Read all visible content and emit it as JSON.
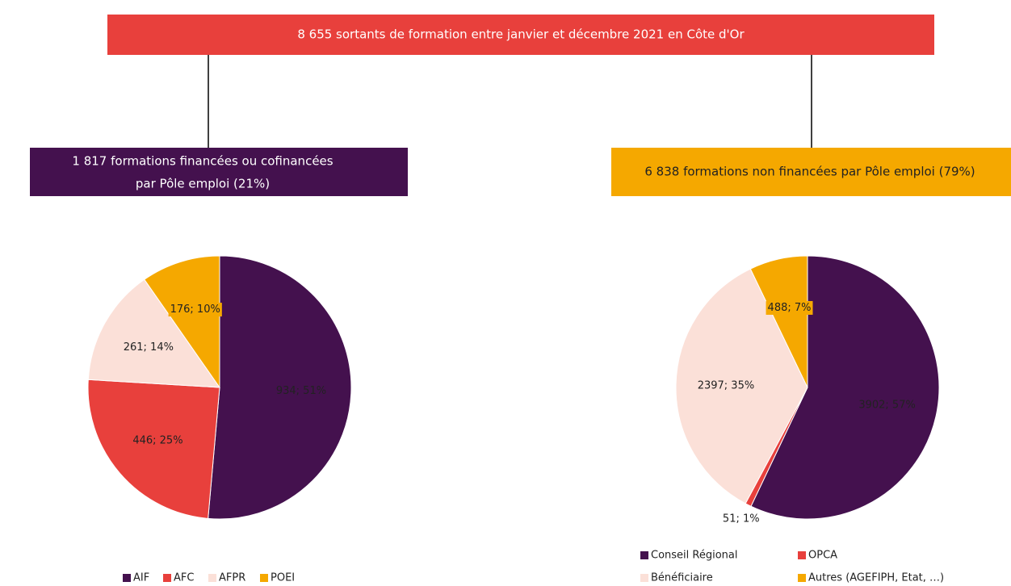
{
  "header": {
    "title": "8 655 sortants de formation entre janvier et décembre 2021 en Côte d'Or"
  },
  "left_box": {
    "lines": [
      "1 817 formations financées ou cofinancées",
      "par Pôle emploi (21%)"
    ]
  },
  "right_box": {
    "lines": [
      "6 838 formations non financées par Pôle emploi (79%)"
    ]
  },
  "chart_data": [
    {
      "type": "pie",
      "categories": [
        "AIF",
        "AFC",
        "AFPR",
        "POEI"
      ],
      "values": [
        934,
        446,
        261,
        176
      ],
      "value_labels": [
        "934; 51%",
        "446; 25%",
        "261; 14%",
        "176; 10%"
      ],
      "colors": [
        "#44114e",
        "#e8403c",
        "#fbe0d8",
        "#f5a800"
      ],
      "legend": "bottom"
    },
    {
      "type": "pie",
      "categories": [
        "Conseil Régional",
        "OPCA",
        "Bénéficiaire",
        "Autres (AGEFIPH, Etat, …)"
      ],
      "values": [
        3902,
        51,
        2397,
        488
      ],
      "value_labels": [
        "3902; 57%",
        "51; 1%",
        "2397; 35%",
        "488; 7%"
      ],
      "colors": [
        "#44114e",
        "#e8403c",
        "#fbe0d8",
        "#f5a800"
      ],
      "legend": "bottom"
    }
  ]
}
